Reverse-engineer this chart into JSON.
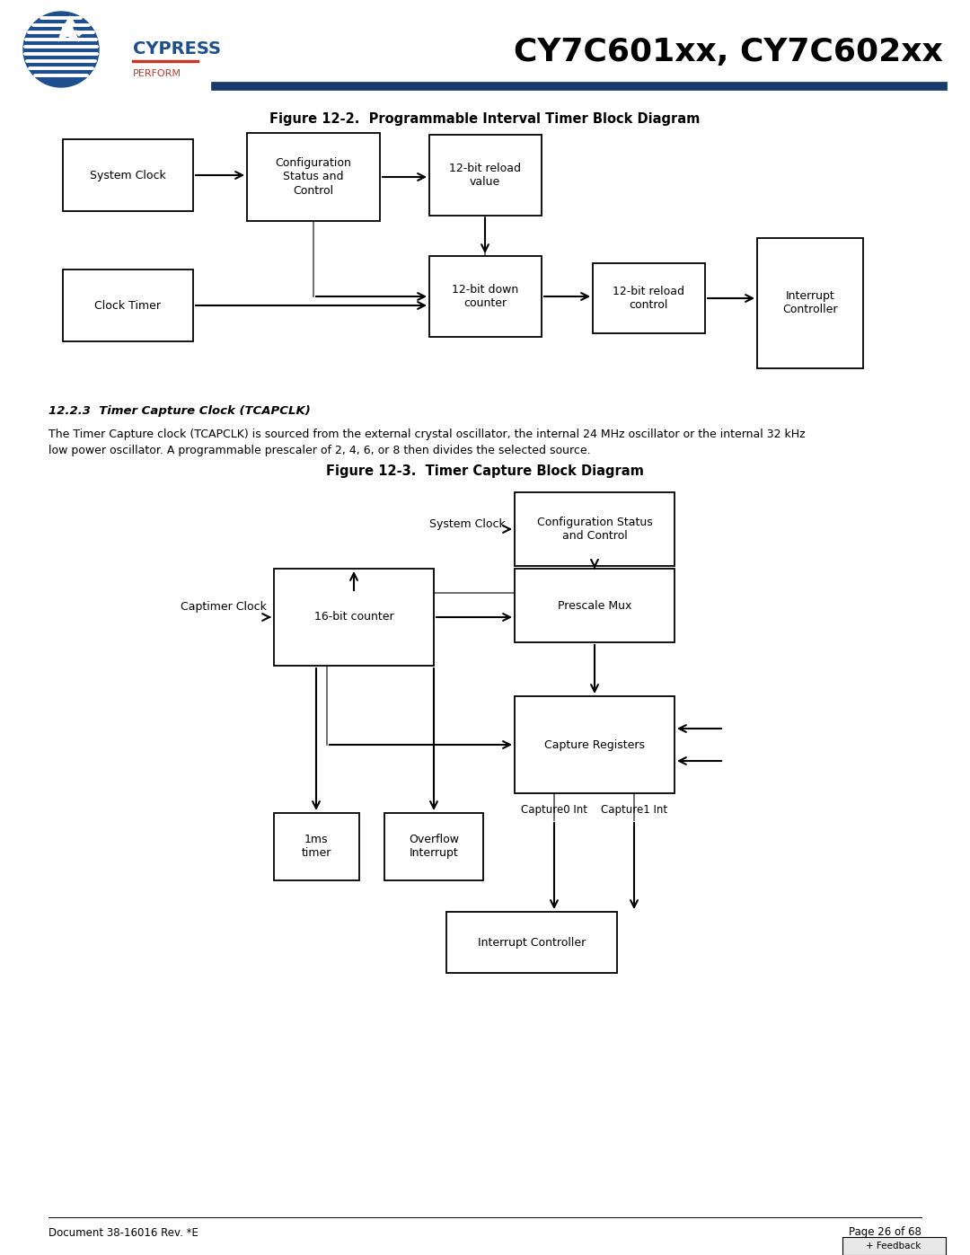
{
  "page_title": "CY7C601xx, CY7C602xx",
  "fig12_2_title": "Figure 12-2.  Programmable Interval Timer Block Diagram",
  "fig12_3_title": "Figure 12-3.  Timer Capture Block Diagram",
  "section_heading": "12.2.3  Timer Capture Clock (TCAPCLK)",
  "section_text_line1": "The Timer Capture clock (TCAPCLK) is sourced from the external crystal oscillator, the internal 24 MHz oscillator or the internal 32 kHz",
  "section_text_line2": "low power oscillator. A programmable prescaler of 2, 4, 6, or 8 then divides the selected source.",
  "footer_left": "Document 38-16016 Rev. *E",
  "footer_right": "Page 26 of 68",
  "feedback_text": "+ Feedback",
  "header_line_color": "#1a3a6b",
  "cypress_blue": "#1f4e8c",
  "perform_red": "#c0392b",
  "arrow_gray": "#555555"
}
